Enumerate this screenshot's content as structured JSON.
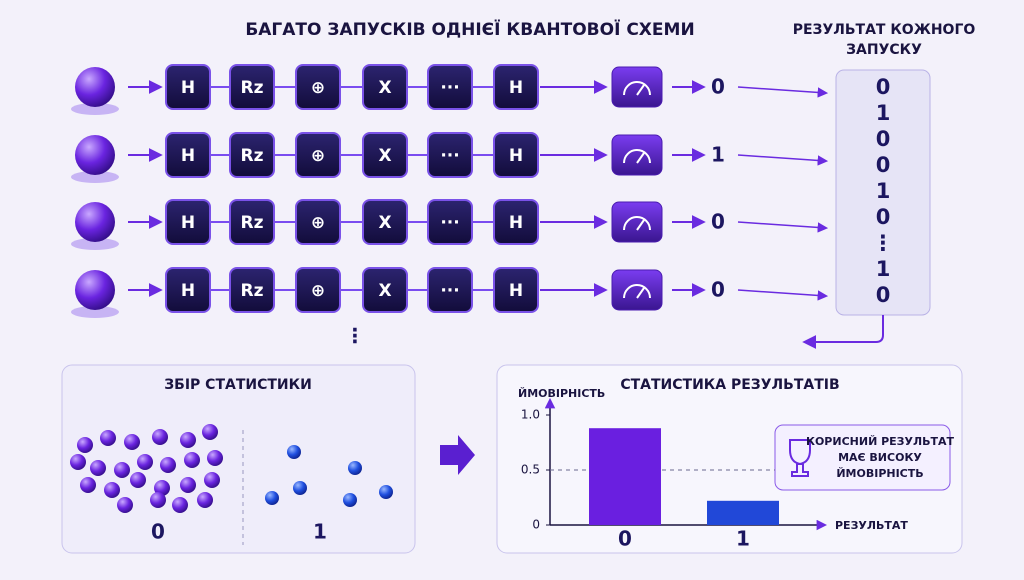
{
  "title": "БАГАТО ЗАПУСКІВ ОДНІЄЇ КВАНТОВОЇ СХЕМИ",
  "results_header": [
    "РЕЗУЛЬТАТ КОЖНОГО",
    "ЗАПУСКУ"
  ],
  "gates": [
    "H",
    "Rz",
    "⊕",
    "X",
    "···",
    "H"
  ],
  "run_outputs": [
    "0",
    "1",
    "0",
    "0"
  ],
  "continuation": "⋮",
  "results": [
    "0",
    "1",
    "0",
    "0",
    "1",
    "0",
    "⋮",
    "1",
    "0"
  ],
  "statistics_panel": {
    "title": "ЗБІР СТАТИСТИКИ",
    "labels": [
      "0",
      "1"
    ]
  },
  "chart_data": {
    "type": "bar",
    "title": "СТАТИСТИКА РЕЗУЛЬТАТІВ",
    "y_label": "ЙМОВІРНІСТЬ",
    "x_label": "РЕЗУЛЬТАТ",
    "categories": [
      "0",
      "1"
    ],
    "values": [
      0.88,
      0.22
    ],
    "colors": [
      "#6a1fe0",
      "#2148d8"
    ],
    "ylim": [
      0,
      1.1
    ],
    "yticks": [
      0,
      0.5,
      {
        "value": 1,
        "label": "1.0"
      }
    ],
    "reference_line": 0.5
  },
  "callout": [
    "КОРИСНИЙ РЕЗУЛЬТАТ",
    "МАЄ ВИСОКУ",
    "ЙМОВІРНІСТЬ"
  ]
}
